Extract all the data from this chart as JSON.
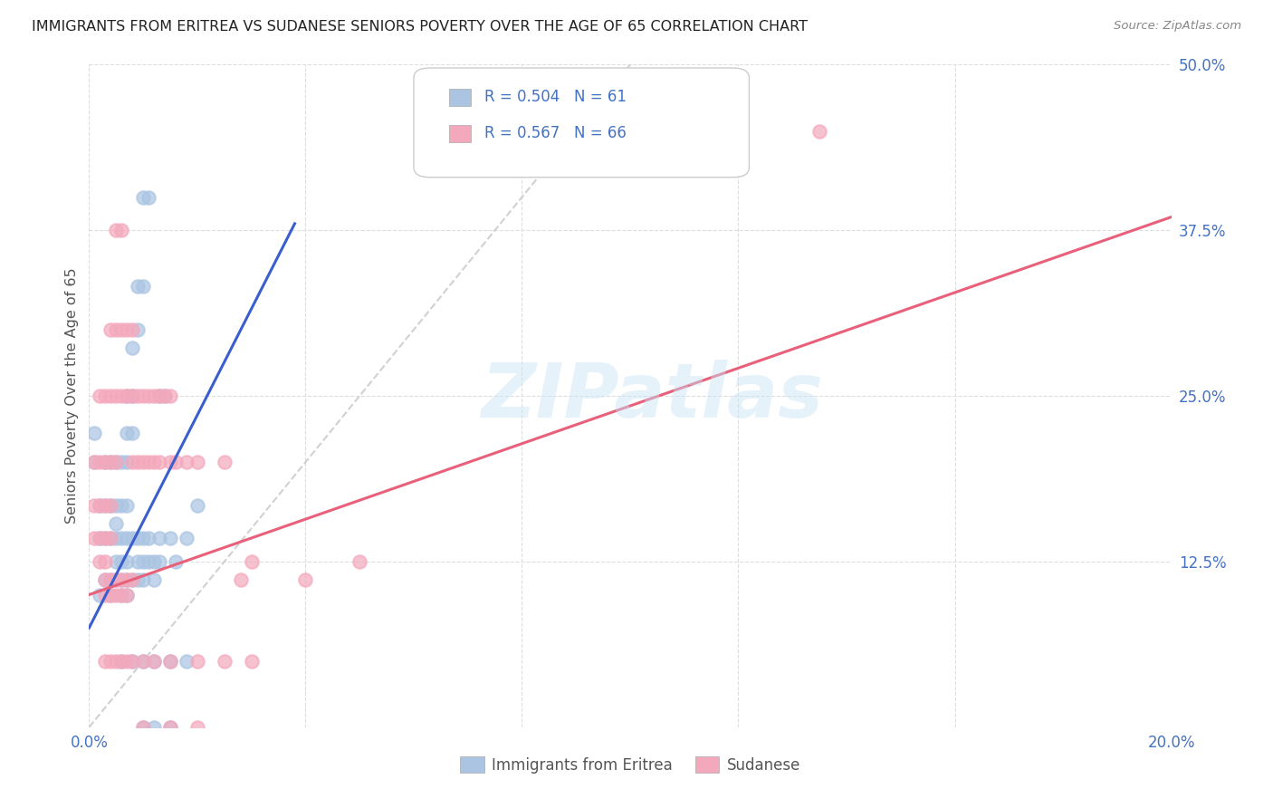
{
  "title": "IMMIGRANTS FROM ERITREA VS SUDANESE SENIORS POVERTY OVER THE AGE OF 65 CORRELATION CHART",
  "source": "Source: ZipAtlas.com",
  "ylabel": "Seniors Poverty Over the Age of 65",
  "xlim": [
    0.0,
    0.2
  ],
  "ylim": [
    0.0,
    0.5
  ],
  "xticks": [
    0.0,
    0.04,
    0.08,
    0.12,
    0.16,
    0.2
  ],
  "yticks": [
    0.0,
    0.125,
    0.25,
    0.375,
    0.5
  ],
  "eritrea_color": "#aac4e2",
  "sudanese_color": "#f4a8bc",
  "eritrea_line_color": "#3a5fcd",
  "sudanese_line_color": "#e8607a",
  "diagonal_color": "#cccccc",
  "watermark": "ZIPatlas",
  "eritrea_line": [
    [
      0.0,
      0.075
    ],
    [
      0.038,
      0.38
    ]
  ],
  "sudanese_line": [
    [
      0.0,
      0.1
    ],
    [
      0.2,
      0.385
    ]
  ],
  "diagonal_line": [
    [
      0.0,
      0.0
    ],
    [
      0.1,
      0.5
    ]
  ],
  "eritrea_scatter": [
    [
      0.001,
      0.2
    ],
    [
      0.001,
      0.222
    ],
    [
      0.002,
      0.167
    ],
    [
      0.002,
      0.143
    ],
    [
      0.002,
      0.1
    ],
    [
      0.003,
      0.2
    ],
    [
      0.003,
      0.167
    ],
    [
      0.003,
      0.143
    ],
    [
      0.004,
      0.2
    ],
    [
      0.004,
      0.167
    ],
    [
      0.004,
      0.143
    ],
    [
      0.004,
      0.111
    ],
    [
      0.005,
      0.2
    ],
    [
      0.005,
      0.167
    ],
    [
      0.005,
      0.154
    ],
    [
      0.005,
      0.143
    ],
    [
      0.005,
      0.125
    ],
    [
      0.006,
      0.2
    ],
    [
      0.006,
      0.167
    ],
    [
      0.006,
      0.143
    ],
    [
      0.006,
      0.125
    ],
    [
      0.006,
      0.111
    ],
    [
      0.007,
      0.25
    ],
    [
      0.007,
      0.222
    ],
    [
      0.007,
      0.2
    ],
    [
      0.007,
      0.167
    ],
    [
      0.007,
      0.143
    ],
    [
      0.007,
      0.125
    ],
    [
      0.008,
      0.286
    ],
    [
      0.008,
      0.25
    ],
    [
      0.008,
      0.222
    ],
    [
      0.009,
      0.333
    ],
    [
      0.009,
      0.3
    ],
    [
      0.01,
      0.4
    ],
    [
      0.01,
      0.333
    ],
    [
      0.011,
      0.4
    ],
    [
      0.013,
      0.25
    ],
    [
      0.014,
      0.25
    ],
    [
      0.015,
      0.143
    ],
    [
      0.016,
      0.125
    ],
    [
      0.018,
      0.143
    ],
    [
      0.02,
      0.167
    ],
    [
      0.005,
      0.111
    ],
    [
      0.006,
      0.1
    ],
    [
      0.004,
      0.1
    ],
    [
      0.003,
      0.111
    ],
    [
      0.007,
      0.111
    ],
    [
      0.007,
      0.1
    ],
    [
      0.008,
      0.143
    ],
    [
      0.008,
      0.111
    ],
    [
      0.009,
      0.143
    ],
    [
      0.009,
      0.125
    ],
    [
      0.009,
      0.111
    ],
    [
      0.01,
      0.143
    ],
    [
      0.01,
      0.125
    ],
    [
      0.01,
      0.111
    ],
    [
      0.011,
      0.143
    ],
    [
      0.011,
      0.125
    ],
    [
      0.012,
      0.125
    ],
    [
      0.012,
      0.111
    ],
    [
      0.013,
      0.143
    ],
    [
      0.013,
      0.125
    ],
    [
      0.006,
      0.05
    ],
    [
      0.008,
      0.05
    ],
    [
      0.01,
      0.05
    ],
    [
      0.012,
      0.05
    ],
    [
      0.015,
      0.05
    ],
    [
      0.018,
      0.05
    ],
    [
      0.015,
      0.0
    ],
    [
      0.012,
      0.0
    ],
    [
      0.01,
      0.0
    ]
  ],
  "sudanese_scatter": [
    [
      0.001,
      0.2
    ],
    [
      0.001,
      0.167
    ],
    [
      0.001,
      0.143
    ],
    [
      0.002,
      0.25
    ],
    [
      0.002,
      0.2
    ],
    [
      0.002,
      0.167
    ],
    [
      0.002,
      0.143
    ],
    [
      0.002,
      0.125
    ],
    [
      0.003,
      0.25
    ],
    [
      0.003,
      0.2
    ],
    [
      0.003,
      0.167
    ],
    [
      0.003,
      0.143
    ],
    [
      0.003,
      0.125
    ],
    [
      0.004,
      0.3
    ],
    [
      0.004,
      0.25
    ],
    [
      0.004,
      0.2
    ],
    [
      0.004,
      0.167
    ],
    [
      0.004,
      0.143
    ],
    [
      0.005,
      0.375
    ],
    [
      0.005,
      0.3
    ],
    [
      0.005,
      0.25
    ],
    [
      0.005,
      0.2
    ],
    [
      0.006,
      0.375
    ],
    [
      0.006,
      0.3
    ],
    [
      0.006,
      0.25
    ],
    [
      0.007,
      0.3
    ],
    [
      0.007,
      0.25
    ],
    [
      0.008,
      0.3
    ],
    [
      0.008,
      0.25
    ],
    [
      0.008,
      0.2
    ],
    [
      0.009,
      0.25
    ],
    [
      0.009,
      0.2
    ],
    [
      0.01,
      0.25
    ],
    [
      0.01,
      0.2
    ],
    [
      0.011,
      0.25
    ],
    [
      0.011,
      0.2
    ],
    [
      0.012,
      0.25
    ],
    [
      0.012,
      0.2
    ],
    [
      0.013,
      0.25
    ],
    [
      0.013,
      0.2
    ],
    [
      0.014,
      0.25
    ],
    [
      0.015,
      0.25
    ],
    [
      0.015,
      0.2
    ],
    [
      0.016,
      0.2
    ],
    [
      0.018,
      0.2
    ],
    [
      0.02,
      0.2
    ],
    [
      0.025,
      0.2
    ],
    [
      0.03,
      0.125
    ],
    [
      0.04,
      0.111
    ],
    [
      0.05,
      0.125
    ],
    [
      0.003,
      0.111
    ],
    [
      0.004,
      0.111
    ],
    [
      0.005,
      0.111
    ],
    [
      0.006,
      0.111
    ],
    [
      0.007,
      0.111
    ],
    [
      0.008,
      0.111
    ],
    [
      0.003,
      0.1
    ],
    [
      0.004,
      0.1
    ],
    [
      0.005,
      0.1
    ],
    [
      0.006,
      0.1
    ],
    [
      0.007,
      0.1
    ],
    [
      0.003,
      0.05
    ],
    [
      0.004,
      0.05
    ],
    [
      0.005,
      0.05
    ],
    [
      0.006,
      0.05
    ],
    [
      0.007,
      0.05
    ],
    [
      0.008,
      0.05
    ],
    [
      0.01,
      0.05
    ],
    [
      0.012,
      0.05
    ],
    [
      0.015,
      0.05
    ],
    [
      0.02,
      0.05
    ],
    [
      0.025,
      0.05
    ],
    [
      0.03,
      0.05
    ],
    [
      0.028,
      0.111
    ],
    [
      0.135,
      0.45
    ],
    [
      0.02,
      0.0
    ],
    [
      0.015,
      0.0
    ],
    [
      0.01,
      0.0
    ]
  ]
}
